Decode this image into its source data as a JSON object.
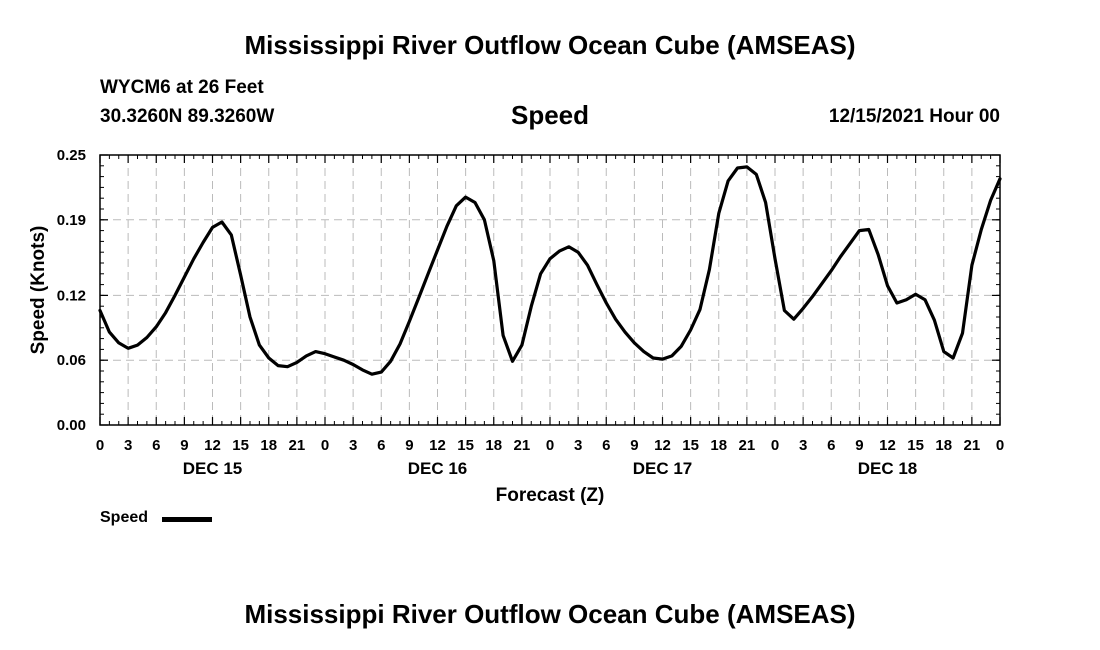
{
  "header": {
    "title": "Mississippi River Outflow Ocean Cube (AMSEAS)",
    "station": "WYCM6 at 26 Feet",
    "coords": "30.3260N  89.3260W",
    "variable": "Speed",
    "issue_time": "12/15/2021 Hour 00"
  },
  "legend": {
    "label": "Speed"
  },
  "footer": {
    "title": "Mississippi River Outflow Ocean Cube (AMSEAS)"
  },
  "colors": {
    "line": "#000000",
    "grid": "#bbbbbb"
  },
  "chart_data": {
    "type": "line",
    "title": "Speed",
    "xlabel": "Forecast (Z)",
    "ylabel": "Speed (Knots)",
    "ylim": [
      0,
      0.25
    ],
    "xlim": [
      0,
      96
    ],
    "yticks": [
      0.0,
      0.06,
      0.12,
      0.19,
      0.25
    ],
    "ytick_labels": [
      "0.00",
      "0.06",
      "0.12",
      "0.19",
      "0.25"
    ],
    "xtick_labels": [
      "0",
      "3",
      "6",
      "9",
      "12",
      "15",
      "18",
      "21",
      "0",
      "3",
      "6",
      "9",
      "12",
      "15",
      "18",
      "21",
      "0",
      "3",
      "6",
      "9",
      "12",
      "15",
      "18",
      "21",
      "0",
      "3",
      "6",
      "9",
      "12",
      "15",
      "18",
      "21",
      "0"
    ],
    "day_labels": [
      {
        "hour": 12,
        "label": "DEC 15"
      },
      {
        "hour": 36,
        "label": "DEC 16"
      },
      {
        "hour": 60,
        "label": "DEC 17"
      },
      {
        "hour": 84,
        "label": "DEC 18"
      }
    ],
    "grid": true,
    "series": [
      {
        "name": "Speed",
        "x": [
          0,
          1,
          2,
          3,
          4,
          5,
          6,
          7,
          8,
          9,
          10,
          11,
          12,
          13,
          14,
          15,
          16,
          17,
          18,
          19,
          20,
          21,
          22,
          23,
          24,
          25,
          26,
          27,
          28,
          29,
          30,
          31,
          32,
          33,
          34,
          35,
          36,
          37,
          38,
          39,
          40,
          41,
          42,
          43,
          44,
          45,
          46,
          47,
          48,
          49,
          50,
          51,
          52,
          53,
          54,
          55,
          56,
          57,
          58,
          59,
          60,
          61,
          62,
          63,
          64,
          65,
          66,
          67,
          68,
          69,
          70,
          71,
          72,
          73,
          74,
          75,
          76,
          77,
          78,
          79,
          80,
          81,
          82,
          83,
          84,
          85,
          86,
          87,
          88,
          89,
          90,
          91,
          92,
          93,
          94,
          95,
          96
        ],
        "values": [
          0.106,
          0.086,
          0.076,
          0.071,
          0.074,
          0.081,
          0.091,
          0.104,
          0.12,
          0.137,
          0.154,
          0.169,
          0.183,
          0.188,
          0.176,
          0.139,
          0.1,
          0.074,
          0.062,
          0.055,
          0.054,
          0.058,
          0.064,
          0.068,
          0.066,
          0.063,
          0.06,
          0.056,
          0.051,
          0.047,
          0.049,
          0.059,
          0.075,
          0.096,
          0.118,
          0.14,
          0.162,
          0.184,
          0.203,
          0.211,
          0.206,
          0.19,
          0.152,
          0.083,
          0.059,
          0.074,
          0.11,
          0.14,
          0.154,
          0.161,
          0.165,
          0.16,
          0.148,
          0.13,
          0.113,
          0.098,
          0.086,
          0.076,
          0.068,
          0.062,
          0.061,
          0.064,
          0.073,
          0.088,
          0.107,
          0.144,
          0.196,
          0.226,
          0.238,
          0.239,
          0.232,
          0.206,
          0.154,
          0.106,
          0.098,
          0.108,
          0.119,
          0.131,
          0.143,
          0.156,
          0.168,
          0.18,
          0.181,
          0.158,
          0.129,
          0.113,
          0.116,
          0.121,
          0.116,
          0.097,
          0.068,
          0.062,
          0.085,
          0.148,
          0.181,
          0.208,
          0.228
        ]
      }
    ]
  }
}
